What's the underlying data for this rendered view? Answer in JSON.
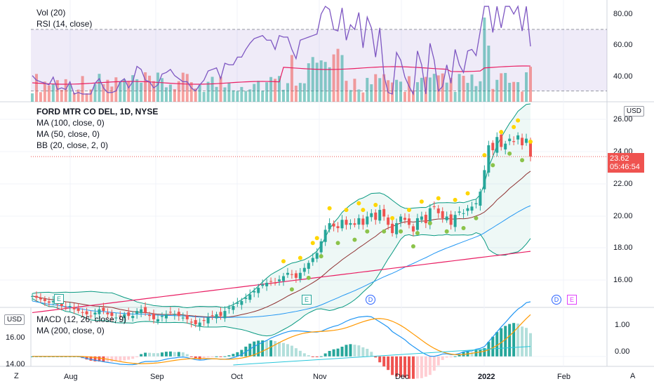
{
  "panes": {
    "volume_rsi": {
      "legend_line1": "Vol (20)",
      "legend_line2": "RSI (14, close)",
      "axis_labels": [
        "80.00",
        "60.00",
        "40.00"
      ]
    },
    "main": {
      "legend_title": "FORD MTR CO DEL, 1D, NYSE",
      "legend_line2": "MA (100, close, 0)",
      "legend_line3": "MA (50, close, 0)",
      "legend_line4": "BB (20, close, 2, 0)",
      "currency": "USD",
      "axis_labels": [
        "26.00",
        "24.00",
        "22.00",
        "20.00",
        "18.00",
        "16.00"
      ],
      "last_price": "23.62",
      "countdown": "05:46:54"
    },
    "macd": {
      "currency": "USD",
      "legend_line1": "MACD (12, 26, close, 9)",
      "legend_line2": "MA (200, close, 0)",
      "left_axis_labels": [
        "16.00",
        "14.00"
      ],
      "axis_labels": [
        "1.00",
        "0.00"
      ]
    }
  },
  "time_axis": {
    "labels": [
      "Aug",
      "Sep",
      "Oct",
      "Nov",
      "Dec",
      "2022",
      "Feb"
    ],
    "left_button": "Z",
    "right_button": "A"
  },
  "events": {
    "earnings": "E",
    "dividend": "D"
  },
  "colors": {
    "up": "#26a69a",
    "down": "#ef5350",
    "ma100": "#e91e63",
    "ma50": "#2196f3",
    "bb": "#089981",
    "rsi": "#7e57c2",
    "macd": "#2196f3",
    "signal": "#ff9800",
    "event_yellow": "#ffd600",
    "event_green": "#8bc34a"
  },
  "chart_data": {
    "type": "candlestick",
    "symbol": "FORD MTR CO DEL",
    "interval": "1D",
    "exchange": "NYSE",
    "last_price": 23.62,
    "price_ylim": [
      14.6,
      26.8
    ],
    "closes": [
      15.2,
      15.1,
      15.0,
      14.9,
      14.8,
      14.9,
      14.7,
      14.6,
      14.5,
      14.6,
      14.4,
      14.3,
      14.2,
      14.1,
      14.0,
      14.2,
      14.4,
      14.3,
      14.1,
      14.0,
      13.9,
      14.0,
      14.1,
      14.0,
      14.0,
      14.3,
      14.4,
      14.2,
      14.0,
      13.8,
      13.8,
      14.0,
      14.1,
      14.2,
      14.1,
      14.0,
      13.9,
      13.8,
      13.6,
      13.5,
      13.6,
      13.7,
      13.9,
      14.0,
      14.1,
      14.0,
      14.3,
      14.5,
      14.6,
      14.8,
      14.9,
      15.1,
      15.3,
      15.5,
      15.7,
      15.9,
      16.0,
      16.1,
      16.0,
      16.2,
      16.4,
      16.6,
      16.5,
      16.3,
      16.6,
      16.9,
      17.2,
      17.5,
      17.8,
      18.5,
      19.2,
      19.6,
      19.4,
      19.3,
      19.8,
      19.5,
      19.6,
      19.5,
      19.9,
      19.5,
      20.0,
      20.2,
      19.8,
      20.4,
      20.0,
      19.5,
      19.0,
      19.6,
      20.0,
      19.8,
      19.5,
      19.1,
      19.9,
      20.0,
      19.6,
      20.5,
      20.6,
      20.2,
      19.9,
      20.0,
      19.5,
      20.1,
      20.3,
      20.2,
      20.5,
      20.6,
      20.8,
      21.5,
      22.8,
      24.3,
      24.0,
      24.8,
      24.2,
      24.4,
      24.7,
      24.5,
      24.9,
      24.3,
      24.7,
      23.62
    ],
    "ma100_range": [
      14.2,
      17.9
    ],
    "ma50_range": [
      13.6,
      21.0
    ],
    "rsi_last": 59,
    "rsi_levels": [
      70,
      30
    ],
    "macd_ylim": [
      -0.3,
      1.5
    ]
  }
}
